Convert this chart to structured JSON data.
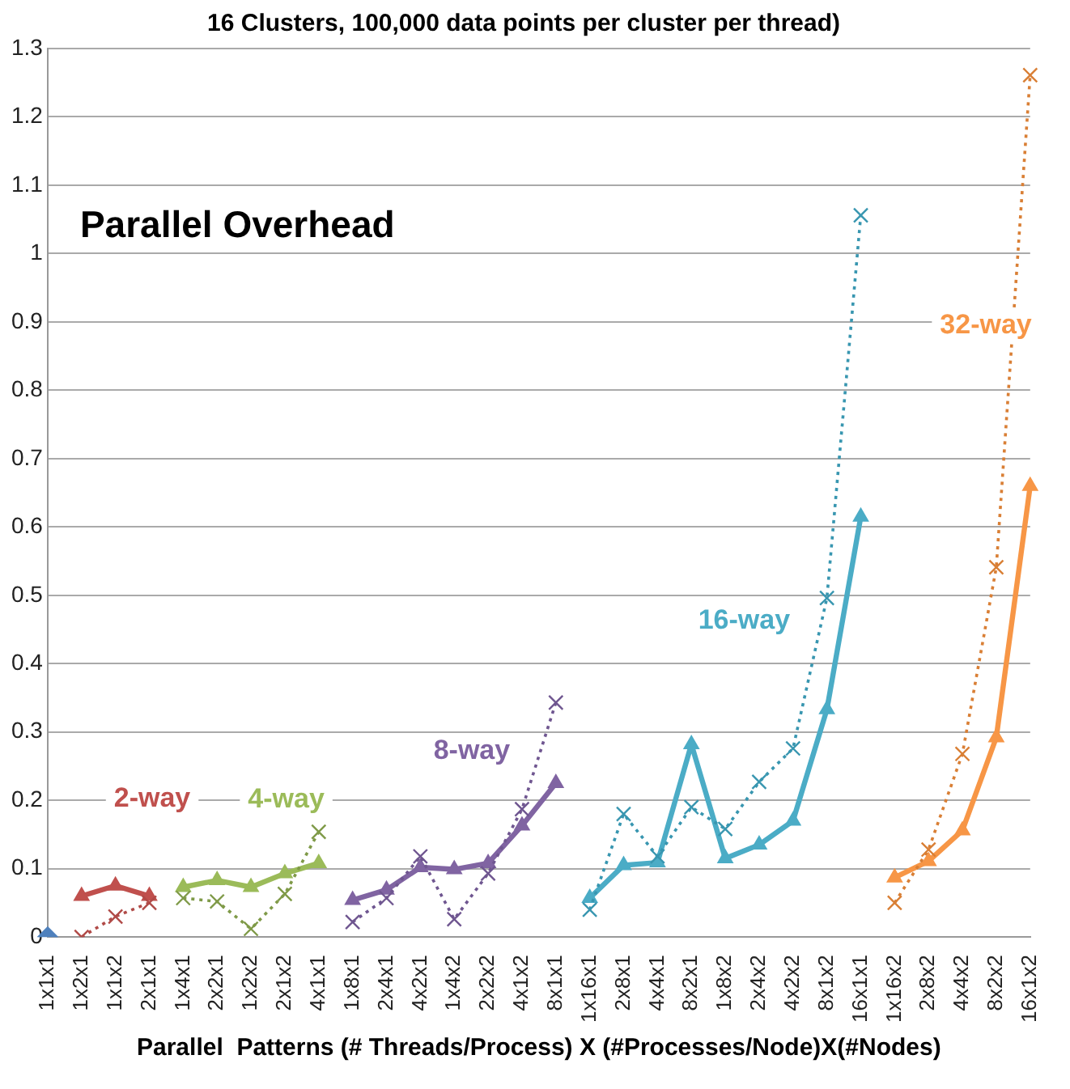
{
  "chart_data": {
    "type": "line",
    "title": "16 Clusters, 100,000 data points per cluster per thread)",
    "xlabel": "Parallel  Patterns (# Threads/Process) X (#Processes/Node)X(#Nodes)",
    "annotations": [
      "Parallel Overhead"
    ],
    "categories": [
      "1x1x1",
      "1x2x1",
      "1x1x2",
      "2x1x1",
      "1x4x1",
      "2x2x1",
      "1x2x2",
      "2x1x2",
      "4x1x1",
      "1x8x1",
      "2x4x1",
      "4x2x1",
      "1x4x2",
      "2x2x2",
      "4x1x2",
      "8x1x1",
      "1x16x1",
      "2x8x1",
      "4x4x1",
      "8x2x1",
      "1x8x2",
      "2x4x2",
      "4x2x2",
      "8x1x2",
      "16x1x1",
      "1x16x2",
      "2x8x2",
      "4x4x2",
      "8x2x2",
      "16x1x2"
    ],
    "ylim": [
      0,
      1.3
    ],
    "yticks": [
      0,
      0.1,
      0.2,
      0.3,
      0.4,
      0.5,
      0.6,
      0.7,
      0.8,
      0.9,
      1,
      1.1,
      1.2,
      1.3
    ],
    "grid": "y",
    "legend": false,
    "series": [
      {
        "type": "scatter",
        "marker": "diamond",
        "color": "#4f81bd",
        "values": [
          0,
          null,
          null,
          null,
          null,
          null,
          null,
          null,
          null,
          null,
          null,
          null,
          null,
          null,
          null,
          null,
          null,
          null,
          null,
          null,
          null,
          null,
          null,
          null,
          null,
          null,
          null,
          null,
          null,
          null
        ]
      },
      {
        "name": "2-way",
        "marker": "triangle",
        "line_style": "solid",
        "color": "#c0504d",
        "values": [
          null,
          0.06,
          0.075,
          0.06,
          null,
          null,
          null,
          null,
          null,
          null,
          null,
          null,
          null,
          null,
          null,
          null,
          null,
          null,
          null,
          null,
          null,
          null,
          null,
          null,
          null,
          null,
          null,
          null,
          null,
          null
        ]
      },
      {
        "marker": "cross",
        "line_style": "dotted",
        "color": "#b04a47",
        "values": [
          null,
          0.0,
          0.03,
          0.05,
          null,
          null,
          null,
          null,
          null,
          null,
          null,
          null,
          null,
          null,
          null,
          null,
          null,
          null,
          null,
          null,
          null,
          null,
          null,
          null,
          null,
          null,
          null,
          null,
          null,
          null
        ]
      },
      {
        "name": "4-way",
        "marker": "triangle",
        "line_style": "solid",
        "color": "#9bbb59",
        "values": [
          null,
          null,
          null,
          null,
          0.073,
          0.083,
          0.073,
          0.093,
          0.108,
          null,
          null,
          null,
          null,
          null,
          null,
          null,
          null,
          null,
          null,
          null,
          null,
          null,
          null,
          null,
          null,
          null,
          null,
          null,
          null,
          null
        ]
      },
      {
        "marker": "cross",
        "line_style": "dotted",
        "color": "#7f9a48",
        "values": [
          null,
          null,
          null,
          null,
          0.057,
          0.052,
          0.012,
          0.063,
          0.154,
          null,
          null,
          null,
          null,
          null,
          null,
          null,
          null,
          null,
          null,
          null,
          null,
          null,
          null,
          null,
          null,
          null,
          null,
          null,
          null,
          null
        ]
      },
      {
        "name": "8-way",
        "marker": "triangle",
        "line_style": "solid",
        "color": "#8064a2",
        "values": [
          null,
          null,
          null,
          null,
          null,
          null,
          null,
          null,
          null,
          0.054,
          0.069,
          0.102,
          0.099,
          0.108,
          0.163,
          0.225,
          null,
          null,
          null,
          null,
          null,
          null,
          null,
          null,
          null,
          null,
          null,
          null,
          null,
          null
        ]
      },
      {
        "marker": "cross",
        "line_style": "dotted",
        "color": "#6f5690",
        "values": [
          null,
          null,
          null,
          null,
          null,
          null,
          null,
          null,
          null,
          0.022,
          0.057,
          0.118,
          0.026,
          0.093,
          0.187,
          0.343,
          null,
          null,
          null,
          null,
          null,
          null,
          null,
          null,
          null,
          null,
          null,
          null,
          null,
          null
        ]
      },
      {
        "name": "16-way",
        "marker": "triangle",
        "line_style": "solid",
        "color": "#4bacc6",
        "values": [
          null,
          null,
          null,
          null,
          null,
          null,
          null,
          null,
          null,
          null,
          null,
          null,
          null,
          null,
          null,
          null,
          0.057,
          0.105,
          0.109,
          0.282,
          0.115,
          0.135,
          0.17,
          0.333,
          0.615,
          null,
          null,
          null,
          null,
          null
        ]
      },
      {
        "marker": "cross",
        "line_style": "dotted",
        "color": "#3896b0",
        "values": [
          null,
          null,
          null,
          null,
          null,
          null,
          null,
          null,
          null,
          null,
          null,
          null,
          null,
          null,
          null,
          null,
          0.04,
          0.18,
          0.118,
          0.19,
          0.158,
          0.227,
          0.276,
          0.496,
          1.056,
          null,
          null,
          null,
          null,
          null
        ]
      },
      {
        "name": "32-way",
        "marker": "triangle",
        "line_style": "solid",
        "color": "#f79646",
        "values": [
          null,
          null,
          null,
          null,
          null,
          null,
          null,
          null,
          null,
          null,
          null,
          null,
          null,
          null,
          null,
          null,
          null,
          null,
          null,
          null,
          null,
          null,
          null,
          null,
          null,
          0.087,
          0.111,
          0.156,
          0.292,
          0.66
        ]
      },
      {
        "marker": "cross",
        "line_style": "dotted",
        "color": "#d97f35",
        "values": [
          null,
          null,
          null,
          null,
          null,
          null,
          null,
          null,
          null,
          null,
          null,
          null,
          null,
          null,
          null,
          null,
          null,
          null,
          null,
          null,
          null,
          null,
          null,
          null,
          null,
          0.05,
          0.128,
          0.268,
          0.541,
          1.261
        ]
      }
    ]
  }
}
